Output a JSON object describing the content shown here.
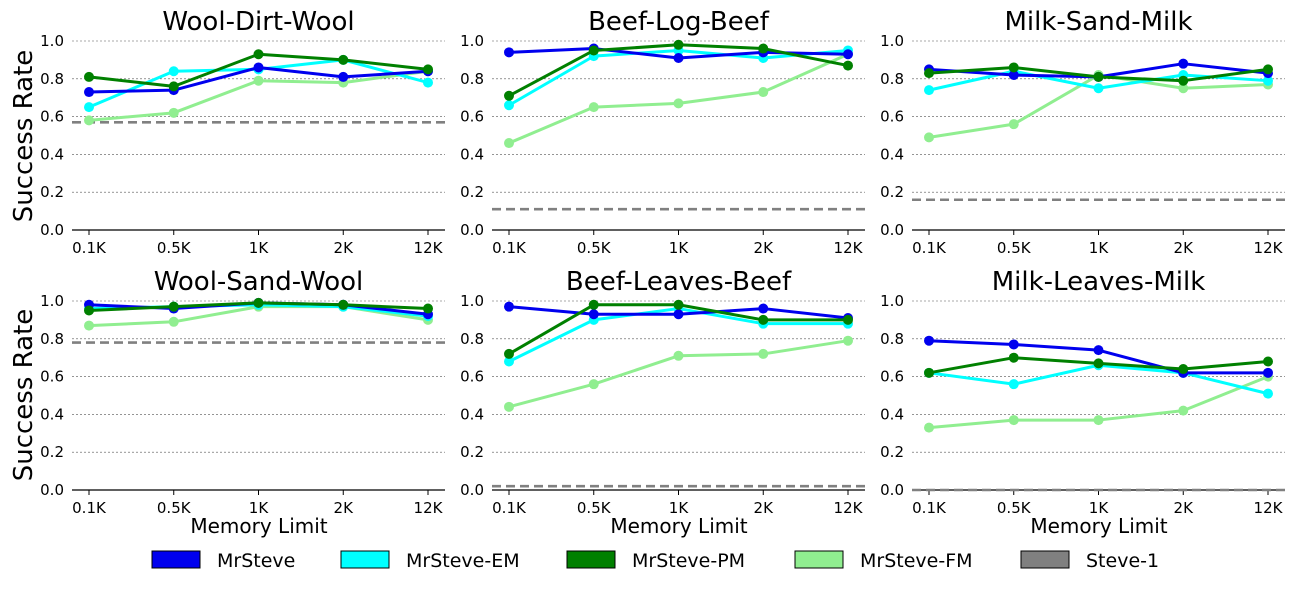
{
  "figure": {
    "ylabel": "Success Rate",
    "xlabel": "Memory Limit",
    "legend": [
      {
        "name": "MrSteve",
        "color": "#0000ee"
      },
      {
        "name": "MrSteve-EM",
        "color": "#00ffff"
      },
      {
        "name": "MrSteve-PM",
        "color": "#008000"
      },
      {
        "name": "MrSteve-FM",
        "color": "#90ee90"
      },
      {
        "name": "Steve-1",
        "color": "#808080"
      }
    ]
  },
  "chart_data": [
    {
      "type": "line",
      "title": "Wool-Dirt-Wool",
      "categories": [
        "0.1K",
        "0.5K",
        "1K",
        "2K",
        "12K"
      ],
      "ylim": [
        0,
        1.0
      ],
      "yticks": [
        "0.0",
        "0.2",
        "0.4",
        "0.6",
        "0.8",
        "1.0"
      ],
      "series": [
        {
          "name": "MrSteve",
          "values": [
            0.73,
            0.74,
            0.86,
            0.81,
            0.84
          ]
        },
        {
          "name": "MrSteve-EM",
          "values": [
            0.65,
            0.84,
            0.85,
            0.9,
            0.78
          ]
        },
        {
          "name": "MrSteve-PM",
          "values": [
            0.81,
            0.76,
            0.93,
            0.9,
            0.85
          ]
        },
        {
          "name": "MrSteve-FM",
          "values": [
            0.58,
            0.62,
            0.79,
            0.78,
            0.84
          ]
        }
      ],
      "baseline": {
        "name": "Steve-1",
        "value": 0.57
      }
    },
    {
      "type": "line",
      "title": "Beef-Log-Beef",
      "categories": [
        "0.1K",
        "0.5K",
        "1K",
        "2K",
        "12K"
      ],
      "ylim": [
        0,
        1.0
      ],
      "yticks": [
        "0.0",
        "0.2",
        "0.4",
        "0.6",
        "0.8",
        "1.0"
      ],
      "series": [
        {
          "name": "MrSteve",
          "values": [
            0.94,
            0.96,
            0.91,
            0.94,
            0.93
          ]
        },
        {
          "name": "MrSteve-EM",
          "values": [
            0.66,
            0.92,
            0.95,
            0.91,
            0.95
          ]
        },
        {
          "name": "MrSteve-PM",
          "values": [
            0.71,
            0.95,
            0.98,
            0.96,
            0.87
          ]
        },
        {
          "name": "MrSteve-FM",
          "values": [
            0.46,
            0.65,
            0.67,
            0.73,
            0.93
          ]
        }
      ],
      "baseline": {
        "name": "Steve-1",
        "value": 0.11
      }
    },
    {
      "type": "line",
      "title": "Milk-Sand-Milk",
      "categories": [
        "0.1K",
        "0.5K",
        "1K",
        "2K",
        "12K"
      ],
      "ylim": [
        0,
        1.0
      ],
      "yticks": [
        "0.0",
        "0.2",
        "0.4",
        "0.6",
        "0.8",
        "1.0"
      ],
      "series": [
        {
          "name": "MrSteve",
          "values": [
            0.85,
            0.82,
            0.81,
            0.88,
            0.83
          ]
        },
        {
          "name": "MrSteve-EM",
          "values": [
            0.74,
            0.84,
            0.75,
            0.82,
            0.79
          ]
        },
        {
          "name": "MrSteve-PM",
          "values": [
            0.83,
            0.86,
            0.81,
            0.79,
            0.85
          ]
        },
        {
          "name": "MrSteve-FM",
          "values": [
            0.49,
            0.56,
            0.82,
            0.75,
            0.77
          ]
        }
      ],
      "baseline": {
        "name": "Steve-1",
        "value": 0.16
      }
    },
    {
      "type": "line",
      "title": "Wool-Sand-Wool",
      "categories": [
        "0.1K",
        "0.5K",
        "1K",
        "2K",
        "12K"
      ],
      "ylim": [
        0,
        1.0
      ],
      "yticks": [
        "0.0",
        "0.2",
        "0.4",
        "0.6",
        "0.8",
        "1.0"
      ],
      "series": [
        {
          "name": "MrSteve",
          "values": [
            0.98,
            0.96,
            0.99,
            0.98,
            0.93
          ]
        },
        {
          "name": "MrSteve-EM",
          "values": [
            0.96,
            0.97,
            0.98,
            0.97,
            0.92
          ]
        },
        {
          "name": "MrSteve-PM",
          "values": [
            0.95,
            0.97,
            0.99,
            0.98,
            0.96
          ]
        },
        {
          "name": "MrSteve-FM",
          "values": [
            0.87,
            0.89,
            0.97,
            0.97,
            0.9
          ]
        }
      ],
      "baseline": {
        "name": "Steve-1",
        "value": 0.78
      }
    },
    {
      "type": "line",
      "title": "Beef-Leaves-Beef",
      "categories": [
        "0.1K",
        "0.5K",
        "1K",
        "2K",
        "12K"
      ],
      "ylim": [
        0,
        1.0
      ],
      "yticks": [
        "0.0",
        "0.2",
        "0.4",
        "0.6",
        "0.8",
        "1.0"
      ],
      "series": [
        {
          "name": "MrSteve",
          "values": [
            0.97,
            0.93,
            0.93,
            0.96,
            0.91
          ]
        },
        {
          "name": "MrSteve-EM",
          "values": [
            0.68,
            0.9,
            0.96,
            0.88,
            0.88
          ]
        },
        {
          "name": "MrSteve-PM",
          "values": [
            0.72,
            0.98,
            0.98,
            0.9,
            0.9
          ]
        },
        {
          "name": "MrSteve-FM",
          "values": [
            0.44,
            0.56,
            0.71,
            0.72,
            0.79
          ]
        }
      ],
      "baseline": {
        "name": "Steve-1",
        "value": 0.02
      }
    },
    {
      "type": "line",
      "title": "Milk-Leaves-Milk",
      "categories": [
        "0.1K",
        "0.5K",
        "1K",
        "2K",
        "12K"
      ],
      "ylim": [
        0,
        1.0
      ],
      "yticks": [
        "0.0",
        "0.2",
        "0.4",
        "0.6",
        "0.8",
        "1.0"
      ],
      "series": [
        {
          "name": "MrSteve",
          "values": [
            0.79,
            0.77,
            0.74,
            0.62,
            0.62
          ]
        },
        {
          "name": "MrSteve-EM",
          "values": [
            0.62,
            0.56,
            0.66,
            0.62,
            0.51
          ]
        },
        {
          "name": "MrSteve-PM",
          "values": [
            0.62,
            0.7,
            0.67,
            0.64,
            0.68
          ]
        },
        {
          "name": "MrSteve-FM",
          "values": [
            0.33,
            0.37,
            0.37,
            0.42,
            0.6
          ]
        }
      ],
      "baseline": {
        "name": "Steve-1",
        "value": 0.0
      }
    }
  ]
}
